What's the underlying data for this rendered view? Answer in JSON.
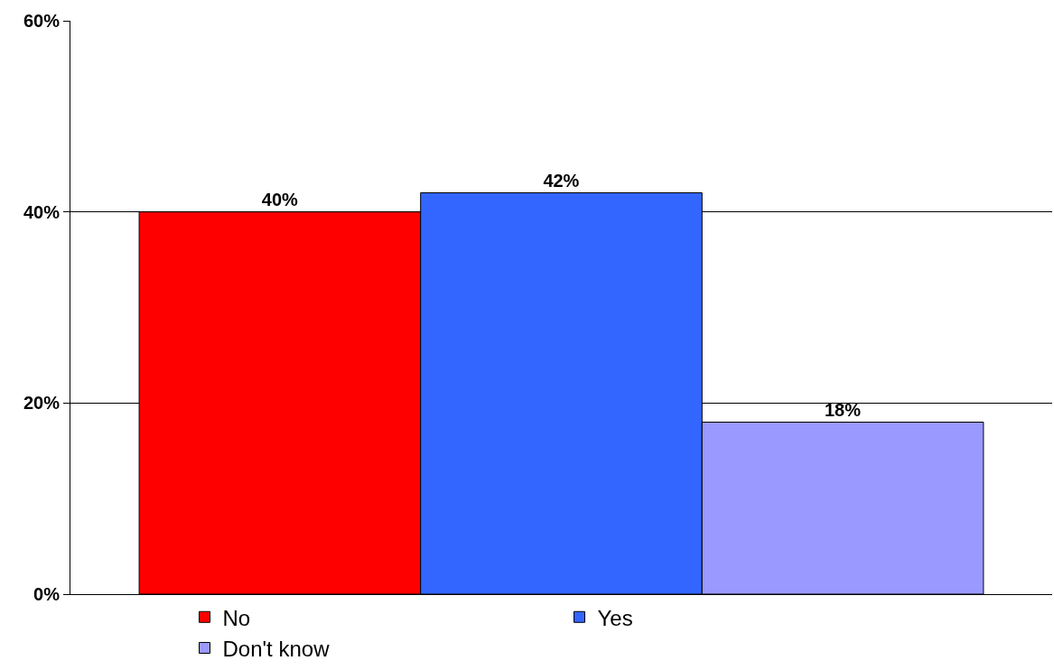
{
  "chart_data": {
    "type": "bar",
    "categories": [
      null
    ],
    "series": [
      {
        "name": "No",
        "color": "#ff0000",
        "values": [
          40
        ],
        "value_labels": [
          "40%"
        ]
      },
      {
        "name": "Yes",
        "color": "#3366ff",
        "values": [
          42
        ],
        "value_labels": [
          "42%"
        ]
      },
      {
        "name": "Don't know",
        "color": "#9999ff",
        "values": [
          18
        ],
        "value_labels": [
          "18%"
        ]
      }
    ],
    "ylim": [
      0,
      60
    ],
    "yticks": [
      {
        "value": 0,
        "label": "0%"
      },
      {
        "value": 20,
        "label": "20%"
      },
      {
        "value": 40,
        "label": "40%"
      },
      {
        "value": 60,
        "label": "60%"
      }
    ],
    "grid": "y",
    "legend": "bottom"
  }
}
